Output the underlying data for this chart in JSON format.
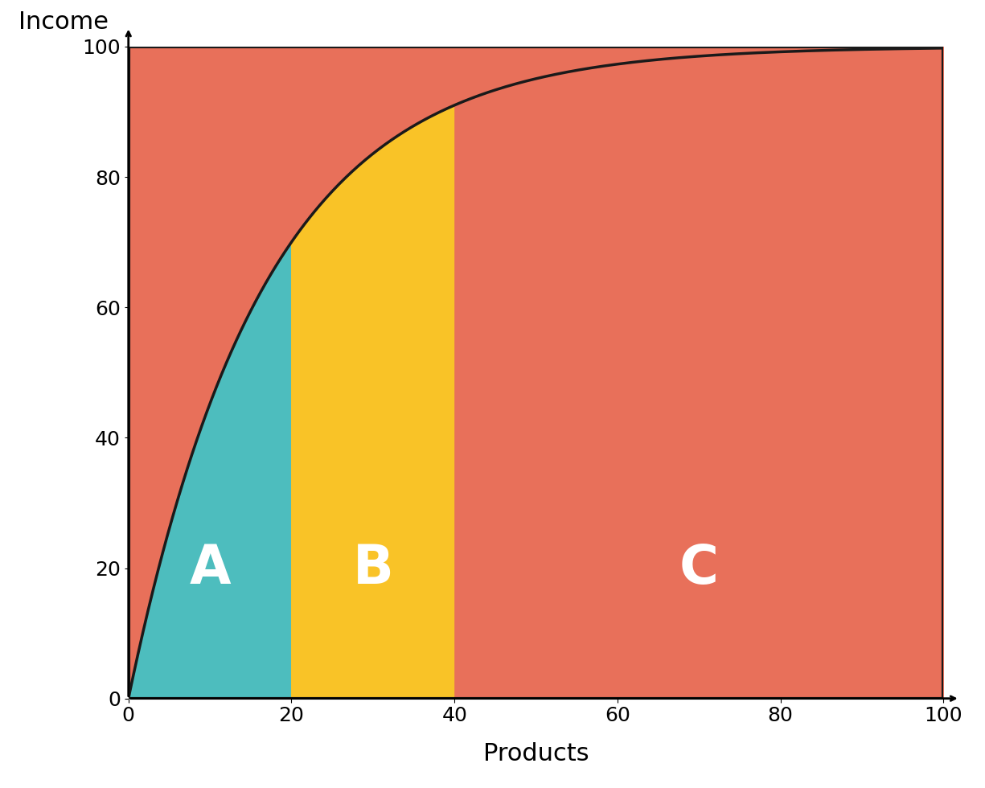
{
  "title": "",
  "xlabel": "Products",
  "ylabel": "Income",
  "xlim": [
    0,
    100
  ],
  "ylim": [
    0,
    100
  ],
  "xticks": [
    0,
    20,
    40,
    60,
    80,
    100
  ],
  "yticks": [
    0,
    20,
    40,
    60,
    80,
    100
  ],
  "color_A": "#4DBDBE",
  "color_B": "#F9C327",
  "color_C": "#E8705A",
  "color_curve": "#1a1a1a",
  "color_border": "#1a1a1a",
  "label_A": "A",
  "label_B": "B",
  "label_C": "C",
  "A_x_end": 20,
  "B_x_end": 40,
  "curve_A_y": 70,
  "curve_B_y": 87,
  "background": "#ffffff",
  "border_linewidth": 2.5,
  "label_fontsize": 48,
  "axis_label_fontsize": 22,
  "tick_fontsize": 18
}
